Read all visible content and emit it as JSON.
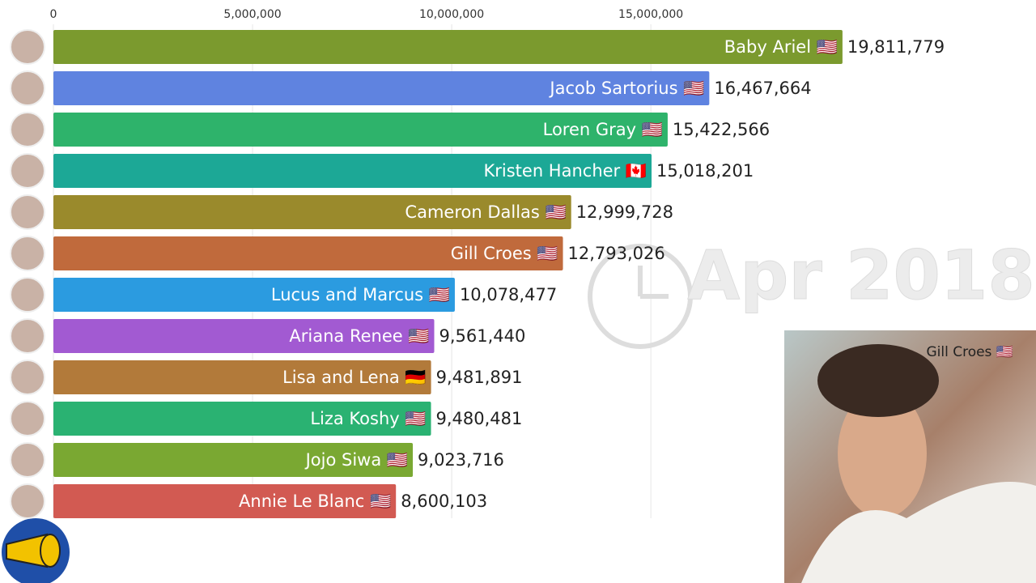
{
  "chart_data": {
    "type": "bar",
    "orientation": "horizontal",
    "categories": [
      "Baby Ariel 🇺🇸",
      "Jacob Sartorius 🇺🇸",
      "Loren Gray 🇺🇸",
      "Kristen Hancher 🇨🇦",
      "Cameron Dallas 🇺🇸",
      "Gill Croes 🇺🇸",
      "Lucus and Marcus 🇺🇸",
      "Ariana Renee 🇺🇸",
      "Lisa and Lena 🇩🇪",
      "Liza Koshy 🇺🇸",
      "Jojo Siwa 🇺🇸",
      "Annie Le Blanc 🇺🇸"
    ],
    "values": [
      19811779,
      16467664,
      15422566,
      15018201,
      12999728,
      12793026,
      10078477,
      9561440,
      9481891,
      9480481,
      9023716,
      8600103
    ],
    "value_labels": [
      "19,811,779",
      "16,467,664",
      "15,422,566",
      "15,018,201",
      "12,999,728",
      "12,793,026",
      "10,078,477",
      "9,561,440",
      "9,481,891",
      "9,480,481",
      "9,023,716",
      "8,600,103"
    ],
    "colors": [
      "#7b9a2e",
      "#5f83e0",
      "#2eb36b",
      "#1ca896",
      "#9a8a2c",
      "#c06a3c",
      "#2b9be0",
      "#a25ad2",
      "#b27a3a",
      "#2ab272",
      "#7aa832",
      "#d25a52"
    ],
    "xlim": [
      0,
      24000000
    ],
    "xticks": [
      0,
      {
        "value": 5000000,
        "label": "5,000,000"
      },
      {
        "value": 10000000,
        "label": "10,000,000"
      },
      {
        "value": 15000000,
        "label": "15,000,000"
      }
    ],
    "grid": true,
    "date_label": "Apr 2018",
    "photo_caption": "Gill Croes 🇺🇸"
  }
}
